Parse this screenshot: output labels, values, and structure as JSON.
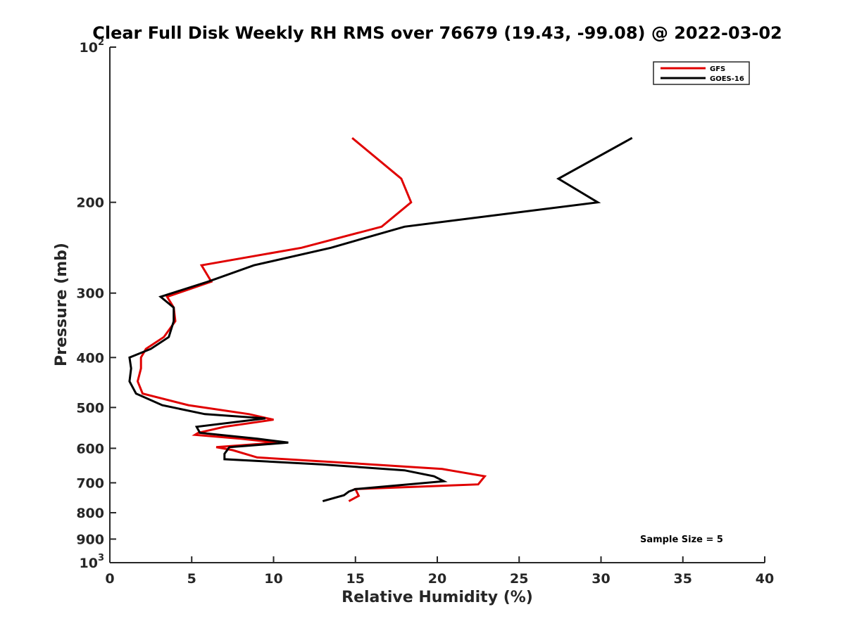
{
  "chart_data": {
    "type": "line",
    "title": "Clear Full Disk Weekly RH RMS over 76679 (19.43, -99.08) @ 2022-03-02",
    "xlabel": "Relative Humidity (%)",
    "ylabel": "Pressure (mb)",
    "xlim": [
      0,
      40
    ],
    "ylim": [
      100,
      1000
    ],
    "y_scale": "log",
    "y_reversed": true,
    "x_ticks": [
      "0",
      "5",
      "10",
      "15",
      "20",
      "25",
      "30",
      "35",
      "40"
    ],
    "y_ticks": [
      {
        "value": 100,
        "label": "10",
        "sup": "2"
      },
      {
        "value": 200,
        "label": "200",
        "sup": ""
      },
      {
        "value": 300,
        "label": "300",
        "sup": ""
      },
      {
        "value": 400,
        "label": "400",
        "sup": ""
      },
      {
        "value": 500,
        "label": "500",
        "sup": ""
      },
      {
        "value": 600,
        "label": "600",
        "sup": ""
      },
      {
        "value": 700,
        "label": "700",
        "sup": ""
      },
      {
        "value": 800,
        "label": "800",
        "sup": ""
      },
      {
        "value": 900,
        "label": "900",
        "sup": ""
      },
      {
        "value": 1000,
        "label": "10",
        "sup": "3"
      }
    ],
    "legend_position": "top-right",
    "annotation": "Sample Size = 5",
    "series": [
      {
        "name": "GFS",
        "color": "#e00000",
        "points": [
          [
            14.8,
            150
          ],
          [
            17.8,
            180
          ],
          [
            18.4,
            200
          ],
          [
            16.6,
            223
          ],
          [
            11.7,
            245
          ],
          [
            5.6,
            265
          ],
          [
            6.2,
            285
          ],
          [
            3.5,
            305
          ],
          [
            3.9,
            320
          ],
          [
            4.0,
            340
          ],
          [
            3.3,
            365
          ],
          [
            2.2,
            385
          ],
          [
            1.9,
            400
          ],
          [
            1.9,
            420
          ],
          [
            1.7,
            445
          ],
          [
            2.0,
            470
          ],
          [
            4.8,
            495
          ],
          [
            8.5,
            515
          ],
          [
            10.0,
            528
          ],
          [
            7.0,
            545
          ],
          [
            5.4,
            560
          ],
          [
            5.2,
            565
          ],
          [
            8.0,
            575
          ],
          [
            10.2,
            585
          ],
          [
            6.5,
            597
          ],
          [
            7.5,
            605
          ],
          [
            9.0,
            625
          ],
          [
            15.0,
            642
          ],
          [
            20.3,
            658
          ],
          [
            22.9,
            680
          ],
          [
            22.5,
            705
          ],
          [
            15.0,
            720
          ],
          [
            15.2,
            742
          ],
          [
            14.6,
            760
          ]
        ]
      },
      {
        "name": "GOES-16",
        "color": "#000000",
        "points": [
          [
            31.9,
            150
          ],
          [
            27.4,
            180
          ],
          [
            29.8,
            200
          ],
          [
            18.0,
            223
          ],
          [
            13.5,
            245
          ],
          [
            8.8,
            265
          ],
          [
            6.0,
            285
          ],
          [
            3.1,
            305
          ],
          [
            3.9,
            320
          ],
          [
            3.9,
            340
          ],
          [
            3.6,
            365
          ],
          [
            2.5,
            385
          ],
          [
            1.2,
            400
          ],
          [
            1.3,
            420
          ],
          [
            1.2,
            445
          ],
          [
            1.6,
            470
          ],
          [
            3.2,
            495
          ],
          [
            5.8,
            515
          ],
          [
            9.5,
            525
          ],
          [
            5.3,
            545
          ],
          [
            5.5,
            560
          ],
          [
            9.0,
            575
          ],
          [
            10.9,
            585
          ],
          [
            7.3,
            597
          ],
          [
            7.0,
            615
          ],
          [
            7.0,
            630
          ],
          [
            13.0,
            645
          ],
          [
            18.0,
            662
          ],
          [
            19.8,
            680
          ],
          [
            20.4,
            695
          ],
          [
            15.0,
            720
          ],
          [
            14.6,
            728
          ],
          [
            14.3,
            740
          ],
          [
            13.0,
            760
          ]
        ]
      }
    ]
  }
}
